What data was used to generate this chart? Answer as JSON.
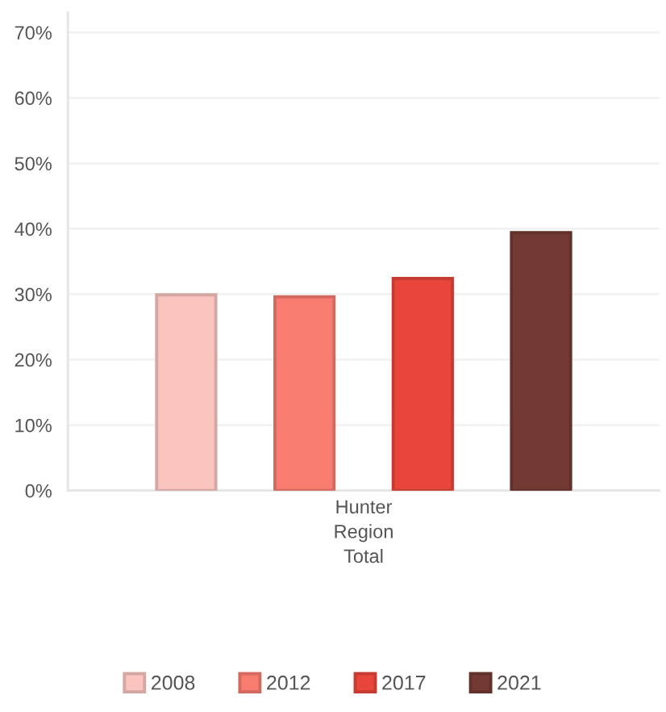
{
  "chart_data": {
    "type": "bar",
    "categories": [
      "Hunter Region Total"
    ],
    "series": [
      {
        "name": "2008",
        "color": "#fac4bf",
        "values": [
          29.9
        ]
      },
      {
        "name": "2012",
        "color": "#f87c70",
        "values": [
          29.6
        ]
      },
      {
        "name": "2017",
        "color": "#e9463b",
        "values": [
          32.4
        ]
      },
      {
        "name": "2021",
        "color": "#733a33",
        "values": [
          39.4
        ]
      }
    ],
    "ylim": [
      0,
      73
    ],
    "yticks": [
      {
        "value": 0,
        "label": "0%"
      },
      {
        "value": 10,
        "label": "10%"
      },
      {
        "value": 20,
        "label": "20%"
      },
      {
        "value": 30,
        "label": "30%"
      },
      {
        "value": 40,
        "label": "40%"
      },
      {
        "value": 50,
        "label": "50%"
      },
      {
        "value": 60,
        "label": "60%"
      },
      {
        "value": 70,
        "label": "70%"
      }
    ],
    "grid": "y",
    "legend": "bottom"
  }
}
